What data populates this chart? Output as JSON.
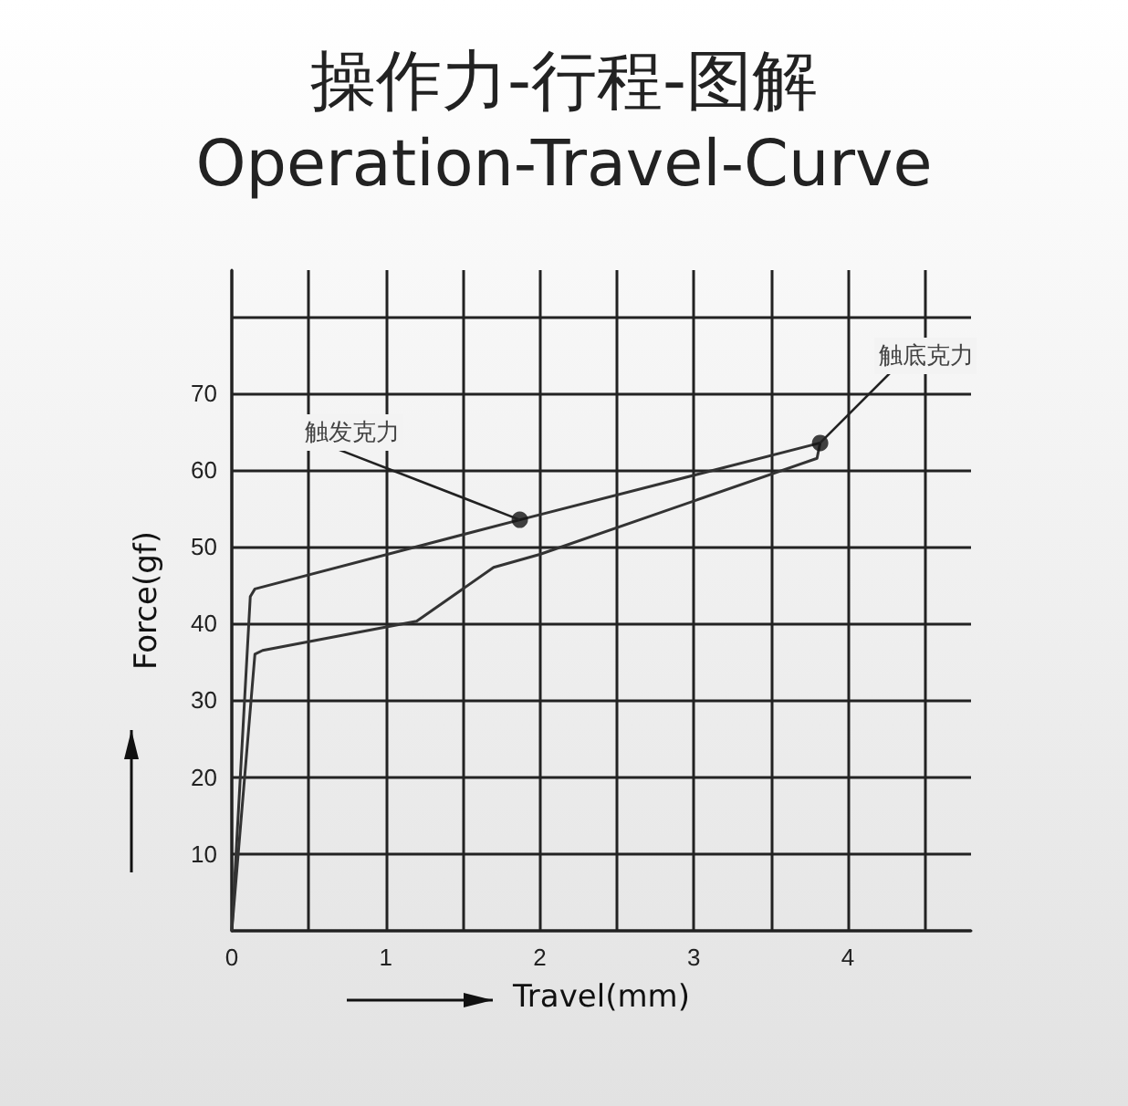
{
  "chart_data": {
    "type": "line",
    "title": "操作力-行程-图解",
    "subtitle": "Operation-Travel-Curve",
    "xlabel": "Travel(mm)",
    "ylabel": "Force(gf)",
    "series": [
      {
        "color": "#333333",
        "x": [
          0,
          0.12,
          0.15,
          1.87,
          3.82
        ],
        "values": [
          0,
          43.5,
          44.5,
          53.5,
          63.5
        ]
      },
      {
        "color": "#333333",
        "x": [
          0,
          0.15,
          0.2,
          1.2,
          1.7,
          2.0,
          3.8,
          3.82
        ],
        "values": [
          0,
          36,
          36.5,
          40.3,
          47.3,
          49,
          61.5,
          63.5
        ]
      },
      {
        "type": "scatter",
        "color": "#111111",
        "marker": "circle",
        "x": [
          1.87,
          3.82
        ],
        "values": [
          53.5,
          63.5
        ]
      }
    ],
    "annotations": [
      {
        "text": "触发克力",
        "x": 1.87,
        "y": 53.5
      },
      {
        "text": "触底克力",
        "x": 3.82,
        "y": 63.5
      }
    ],
    "xlim": [
      0,
      4.8
    ],
    "ylim": [
      0,
      86
    ],
    "xticks": [
      0,
      {
        "value": 0.5,
        "label": null
      },
      1,
      {
        "value": 1.5,
        "label": null
      },
      2,
      {
        "value": 2.5,
        "label": null
      },
      3,
      {
        "value": 3.5,
        "label": null
      },
      4,
      {
        "value": 4.5,
        "label": null
      }
    ],
    "yticks": [
      {
        "value": 0,
        "label": null
      },
      10,
      20,
      30,
      40,
      50,
      60,
      70,
      {
        "value": 80,
        "label": null
      }
    ],
    "grid": true,
    "marker": "none",
    "line_style": "solid"
  }
}
